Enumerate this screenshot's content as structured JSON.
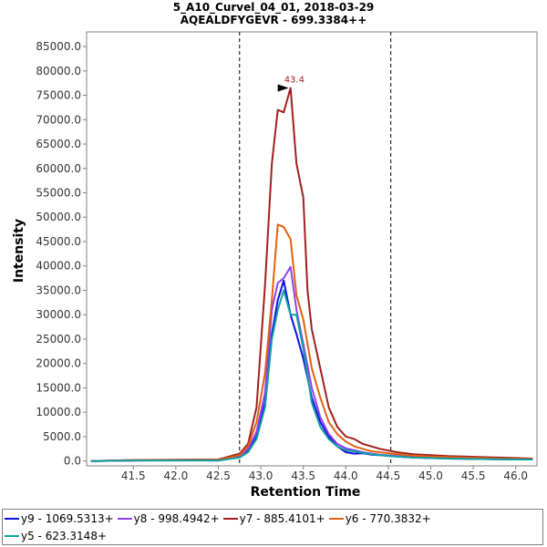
{
  "chart_data": {
    "type": "line",
    "title": "5_A10_Curvel_04_01, 2018-03-29",
    "subtitle": "AQEALDFYGEVR - 699.3384++",
    "xlabel": "Retention Time",
    "ylabel": "Intensity",
    "xlim": [
      40.95,
      46.25
    ],
    "ylim": [
      -1000,
      88000
    ],
    "x_ticks": [
      "41.5",
      "42.0",
      "42.5",
      "43.0",
      "43.5",
      "44.0",
      "44.5",
      "45.0",
      "45.5",
      "46.0"
    ],
    "y_ticks": [
      "0.0",
      "5000.0",
      "10000.0",
      "15000.0",
      "20000.0",
      "25000.0",
      "30000.0",
      "35000.0",
      "40000.0",
      "45000.0",
      "50000.0",
      "55000.0",
      "60000.0",
      "65000.0",
      "70000.0",
      "75000.0",
      "80000.0",
      "85000.0"
    ],
    "boundaries": [
      42.75,
      44.53
    ],
    "annotation": {
      "text": "43.4",
      "x": 43.35,
      "y": 76500
    },
    "legend_position": "bottom",
    "series": [
      {
        "name": "y9 - 1069.5313+",
        "color": "#1010e0",
        "x": [
          41.0,
          41.5,
          42.0,
          42.5,
          42.75,
          42.85,
          42.95,
          43.05,
          43.13,
          43.2,
          43.27,
          43.35,
          43.42,
          43.5,
          43.6,
          43.7,
          43.8,
          43.9,
          44.0,
          44.1,
          44.2,
          44.3,
          44.4,
          44.6,
          44.8,
          45.0,
          45.2,
          45.4,
          45.6,
          45.8,
          46.0,
          46.2
        ],
        "y": [
          0,
          100,
          150,
          100,
          800,
          2000,
          5000,
          12000,
          26000,
          33000,
          37000,
          30000,
          26000,
          21000,
          13000,
          8000,
          5000,
          3000,
          1800,
          1500,
          1600,
          1300,
          1200,
          900,
          700,
          600,
          500,
          450,
          400,
          350,
          300,
          300
        ]
      },
      {
        "name": "y8 - 998.4942+",
        "color": "#9040f0",
        "x": [
          41.0,
          41.5,
          42.0,
          42.5,
          42.75,
          42.85,
          42.95,
          43.05,
          43.13,
          43.2,
          43.27,
          43.35,
          43.42,
          43.5,
          43.6,
          43.7,
          43.8,
          43.9,
          44.0,
          44.1,
          44.2,
          44.3,
          44.4,
          44.6,
          44.8,
          45.0,
          45.2,
          45.4,
          45.6,
          45.8,
          46.0,
          46.2
        ],
        "y": [
          0,
          100,
          150,
          150,
          900,
          2500,
          6000,
          14000,
          31000,
          36500,
          37500,
          39800,
          31000,
          24000,
          15000,
          9000,
          5500,
          3500,
          2600,
          2200,
          1800,
          1500,
          1300,
          1000,
          800,
          700,
          600,
          500,
          450,
          400,
          350,
          300
        ]
      },
      {
        "name": "y7 - 885.4101+",
        "color": "#a02020",
        "x": [
          41.0,
          41.5,
          42.0,
          42.5,
          42.75,
          42.85,
          42.95,
          43.05,
          43.13,
          43.2,
          43.27,
          43.35,
          43.42,
          43.5,
          43.55,
          43.6,
          43.7,
          43.8,
          43.9,
          44.0,
          44.1,
          44.2,
          44.3,
          44.4,
          44.6,
          44.8,
          45.0,
          45.2,
          45.4,
          45.6,
          45.8,
          46.0,
          46.2
        ],
        "y": [
          0,
          200,
          250,
          300,
          1500,
          3500,
          11000,
          36000,
          61000,
          72000,
          71500,
          76500,
          61000,
          54000,
          35000,
          27000,
          19000,
          11000,
          7000,
          5000,
          4500,
          3500,
          3000,
          2500,
          1800,
          1400,
          1200,
          1000,
          900,
          800,
          700,
          600,
          500
        ]
      },
      {
        "name": "y6 - 770.3832+",
        "color": "#e06010",
        "x": [
          41.0,
          41.5,
          42.0,
          42.5,
          42.75,
          42.85,
          42.95,
          43.05,
          43.13,
          43.2,
          43.27,
          43.35,
          43.42,
          43.5,
          43.6,
          43.7,
          43.8,
          43.9,
          44.0,
          44.1,
          44.2,
          44.3,
          44.4,
          44.6,
          44.8,
          45.0,
          45.2,
          45.4,
          45.6,
          45.8,
          46.0,
          46.2
        ],
        "y": [
          0,
          150,
          200,
          200,
          1200,
          3000,
          8000,
          18000,
          33000,
          48500,
          48000,
          45500,
          34000,
          29000,
          19000,
          13000,
          8000,
          5500,
          4000,
          3000,
          2500,
          2000,
          1800,
          1400,
          1100,
          900,
          800,
          700,
          600,
          500,
          450,
          400
        ]
      },
      {
        "name": "y5 - 623.3148+",
        "color": "#10a0a0",
        "x": [
          41.0,
          41.5,
          42.0,
          42.5,
          42.75,
          42.85,
          42.95,
          43.05,
          43.13,
          43.2,
          43.27,
          43.35,
          43.42,
          43.5,
          43.6,
          43.7,
          43.8,
          43.9,
          44.0,
          44.1,
          44.2,
          44.3,
          44.4,
          44.6,
          44.8,
          45.0,
          45.2,
          45.4,
          45.6,
          45.8,
          46.0,
          46.2
        ],
        "y": [
          0,
          100,
          100,
          100,
          700,
          1800,
          4500,
          11000,
          25000,
          31000,
          35000,
          30000,
          30000,
          23000,
          12000,
          7000,
          4500,
          3000,
          2200,
          2000,
          1700,
          1400,
          1200,
          900,
          700,
          600,
          500,
          450,
          400,
          350,
          300,
          300
        ]
      }
    ]
  }
}
